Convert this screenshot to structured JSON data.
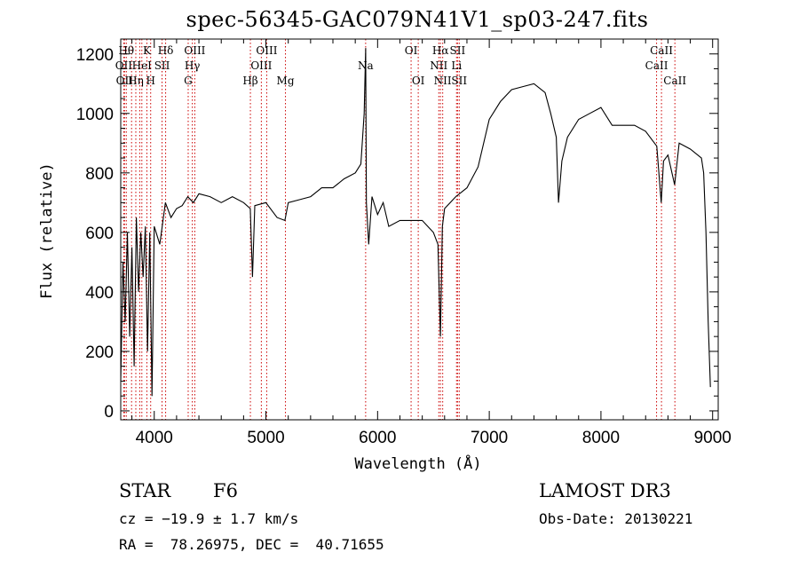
{
  "title": "spec-56345-GAC079N41V1_sp03-247.fits",
  "info": {
    "object_class": "STAR",
    "subclass": "F6",
    "survey": "LAMOST DR3",
    "redshift": "cz = −19.9 ± 1.7 km/s",
    "obs_date": "Obs-Date: 20130221",
    "coords": "RA =  78.26975, DEC =  40.71655"
  },
  "chart_data": {
    "type": "line",
    "title": "spec-56345-GAC079N41V1_sp03-247.fits",
    "xlabel": "Wavelength (Å)",
    "ylabel": "Flux (relative)",
    "xlim": [
      3700,
      9050
    ],
    "ylim": [
      -30,
      1250
    ],
    "x_ticks": [
      4000,
      5000,
      6000,
      7000,
      8000,
      9000
    ],
    "y_ticks": [
      0,
      200,
      400,
      600,
      800,
      1000,
      1200
    ],
    "line_color": "#000000",
    "marker_color": "#cc0000",
    "series": [
      {
        "x": [
          3700,
          3720,
          3740,
          3760,
          3780,
          3800,
          3820,
          3840,
          3860,
          3880,
          3900,
          3920,
          3940,
          3960,
          3980,
          4000,
          4050,
          4100,
          4150,
          4200,
          4250,
          4300,
          4350,
          4400,
          4500,
          4600,
          4700,
          4800,
          4860,
          4880,
          4900,
          5000,
          5100,
          5170,
          5200,
          5300,
          5400,
          5500,
          5600,
          5700,
          5800,
          5850,
          5880,
          5893,
          5900,
          5920,
          5950,
          6000,
          6050,
          6100,
          6200,
          6300,
          6400,
          6500,
          6540,
          6563,
          6580,
          6600,
          6700,
          6800,
          6900,
          7000,
          7100,
          7200,
          7300,
          7400,
          7500,
          7550,
          7600,
          7620,
          7650,
          7700,
          7800,
          7900,
          8000,
          8100,
          8200,
          8300,
          8400,
          8500,
          8540,
          8560,
          8600,
          8660,
          8700,
          8800,
          8900,
          8920,
          8940,
          8960,
          8980
        ],
        "values": [
          100,
          500,
          300,
          600,
          250,
          550,
          150,
          650,
          400,
          600,
          450,
          620,
          200,
          600,
          50,
          620,
          560,
          700,
          650,
          680,
          690,
          720,
          700,
          730,
          720,
          700,
          720,
          700,
          680,
          450,
          690,
          700,
          650,
          640,
          700,
          710,
          720,
          750,
          750,
          780,
          800,
          830,
          1000,
          1220,
          700,
          560,
          720,
          660,
          700,
          620,
          640,
          640,
          640,
          600,
          560,
          250,
          620,
          680,
          720,
          750,
          820,
          980,
          1040,
          1080,
          1090,
          1100,
          1070,
          1000,
          920,
          700,
          840,
          920,
          980,
          1000,
          1020,
          960,
          960,
          960,
          940,
          890,
          700,
          840,
          860,
          760,
          900,
          880,
          850,
          800,
          600,
          300,
          80
        ]
      }
    ],
    "line_markers": [
      {
        "wavelength": 3750,
        "label": "Hθ",
        "row": 0
      },
      {
        "wavelength": 3727,
        "label": "OII",
        "row": 1
      },
      {
        "wavelength": 3734,
        "label": "OII",
        "row": 2
      },
      {
        "wavelength": 3797,
        "label": "",
        "row": 0
      },
      {
        "wavelength": 3835,
        "label": "Hη",
        "row": 2
      },
      {
        "wavelength": 3870,
        "label": "",
        "row": 1
      },
      {
        "wavelength": 3889,
        "label": "HeI",
        "row": 1
      },
      {
        "wavelength": 3934,
        "label": "K",
        "row": 0
      },
      {
        "wavelength": 3968,
        "label": "H",
        "row": 2
      },
      {
        "wavelength": 4070,
        "label": "SII",
        "row": 1
      },
      {
        "wavelength": 4102,
        "label": "Hδ",
        "row": 0
      },
      {
        "wavelength": 4304,
        "label": "G",
        "row": 2
      },
      {
        "wavelength": 4341,
        "label": "Hγ",
        "row": 1
      },
      {
        "wavelength": 4363,
        "label": "OIII",
        "row": 0
      },
      {
        "wavelength": 4861,
        "label": "Hβ",
        "row": 2
      },
      {
        "wavelength": 4959,
        "label": "OIII",
        "row": 1
      },
      {
        "wavelength": 5007,
        "label": "OIII",
        "row": 0
      },
      {
        "wavelength": 5175,
        "label": "Mg",
        "row": 2
      },
      {
        "wavelength": 5893,
        "label": "Na",
        "row": 1
      },
      {
        "wavelength": 6300,
        "label": "OI",
        "row": 0
      },
      {
        "wavelength": 6364,
        "label": "OI",
        "row": 2
      },
      {
        "wavelength": 6548,
        "label": "NII",
        "row": 1
      },
      {
        "wavelength": 6563,
        "label": "Hα",
        "row": 0
      },
      {
        "wavelength": 6583,
        "label": "NII",
        "row": 2
      },
      {
        "wavelength": 6707,
        "label": "Li",
        "row": 1
      },
      {
        "wavelength": 6716,
        "label": "SII",
        "row": 0
      },
      {
        "wavelength": 6731,
        "label": "SII",
        "row": 2
      },
      {
        "wavelength": 8498,
        "label": "CaII",
        "row": 1
      },
      {
        "wavelength": 8542,
        "label": "CaII",
        "row": 0
      },
      {
        "wavelength": 8662,
        "label": "CaII",
        "row": 2
      }
    ]
  }
}
